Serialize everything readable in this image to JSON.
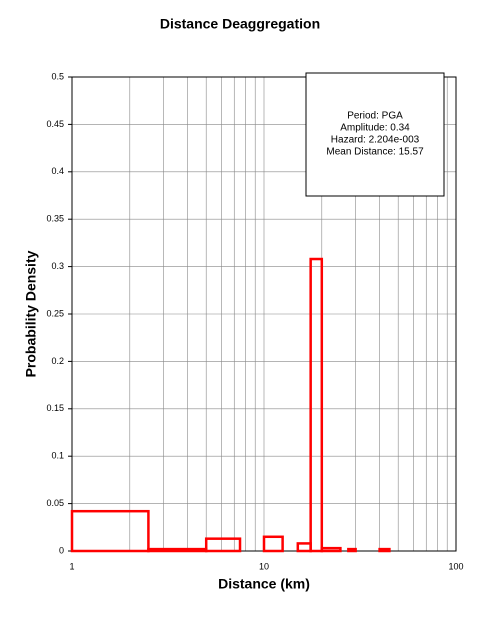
{
  "chart_data": {
    "type": "histogram",
    "title": "Distance Deaggregation",
    "x_label": "Distance (km)",
    "y_label": "Probability Density",
    "bins": [
      1,
      2.5,
      5,
      7.5,
      10,
      12.5,
      15,
      17.5,
      20,
      25,
      27.5,
      30,
      40,
      45,
      100
    ],
    "values": [
      0.042,
      0.002,
      0.013,
      0,
      0.015,
      0,
      0.008,
      0.308,
      0.003,
      0,
      0.002,
      0,
      0.002,
      0
    ],
    "color": "#ff0000",
    "xlim": [
      1,
      100
    ],
    "xscale": "log",
    "xticks": [
      1,
      10,
      100
    ],
    "xminorticks": [
      2,
      3,
      4,
      5,
      6,
      7,
      8,
      9,
      20,
      30,
      40,
      50,
      60,
      70,
      80,
      90
    ],
    "ylim": [
      0,
      0.5
    ],
    "yticks": [
      0,
      0.05,
      0.1,
      0.15,
      0.2,
      0.25,
      0.3,
      0.35,
      0.4,
      0.45,
      0.5
    ],
    "grid": true,
    "annotation": [
      "Period: PGA",
      "Amplitude: 0.34",
      "Hazard: 2.204e-003",
      "Mean Distance: 15.57"
    ]
  }
}
